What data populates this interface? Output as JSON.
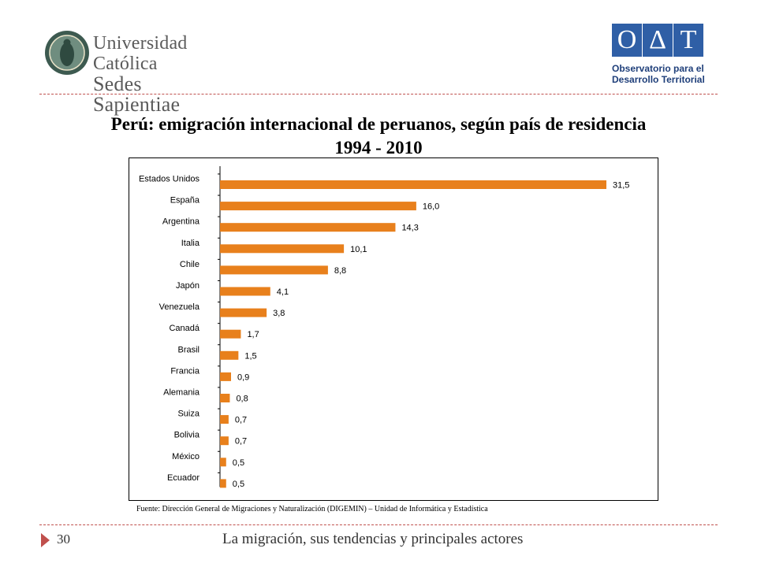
{
  "header": {
    "left_logo": {
      "line1": "Universidad Católica",
      "line2": "Sedes Sapientiae"
    },
    "right_logo": {
      "letters": [
        "O",
        "Δ",
        "T"
      ],
      "line1": "Observatorio para el",
      "line2": "Desarrollo Territorial"
    }
  },
  "title": {
    "line1": "Perú: emigración internacional de peruanos,  según país de residencia",
    "line2": "1994 - 2010"
  },
  "chart_data": {
    "type": "bar",
    "orientation": "horizontal",
    "categories": [
      "Estados Unidos",
      "España",
      "Argentina",
      "Italia",
      "Chile",
      "Japón",
      "Venezuela",
      "Canadá",
      "Brasil",
      "Francia",
      "Alemania",
      "Suiza",
      "Bolivia",
      "México",
      "Ecuador"
    ],
    "values": [
      31.5,
      16.0,
      14.3,
      10.1,
      8.8,
      4.1,
      3.8,
      1.7,
      1.5,
      0.9,
      0.8,
      0.7,
      0.7,
      0.5,
      0.5
    ],
    "value_labels": [
      "31,5",
      "16,0",
      "14,3",
      "10,1",
      "8,8",
      "4,1",
      "3,8",
      "1,7",
      "1,5",
      "0,9",
      "0,8",
      "0,7",
      "0,7",
      "0,5",
      "0,5"
    ],
    "bar_color": "#e8801c",
    "xlim": [
      0,
      31.5
    ],
    "grid": false,
    "legend": "none"
  },
  "source": "Fuente: Dirección General de Migraciones y Naturalización (DIGEMIN) – Unidad de Informática y Estadística",
  "footer": {
    "page_number": "30",
    "text": "La migración, sus tendencias y principales actores"
  },
  "colors": {
    "accent": "#c0504d",
    "oat_blue": "#2f5fa6",
    "oat_red": "#c0392b"
  }
}
